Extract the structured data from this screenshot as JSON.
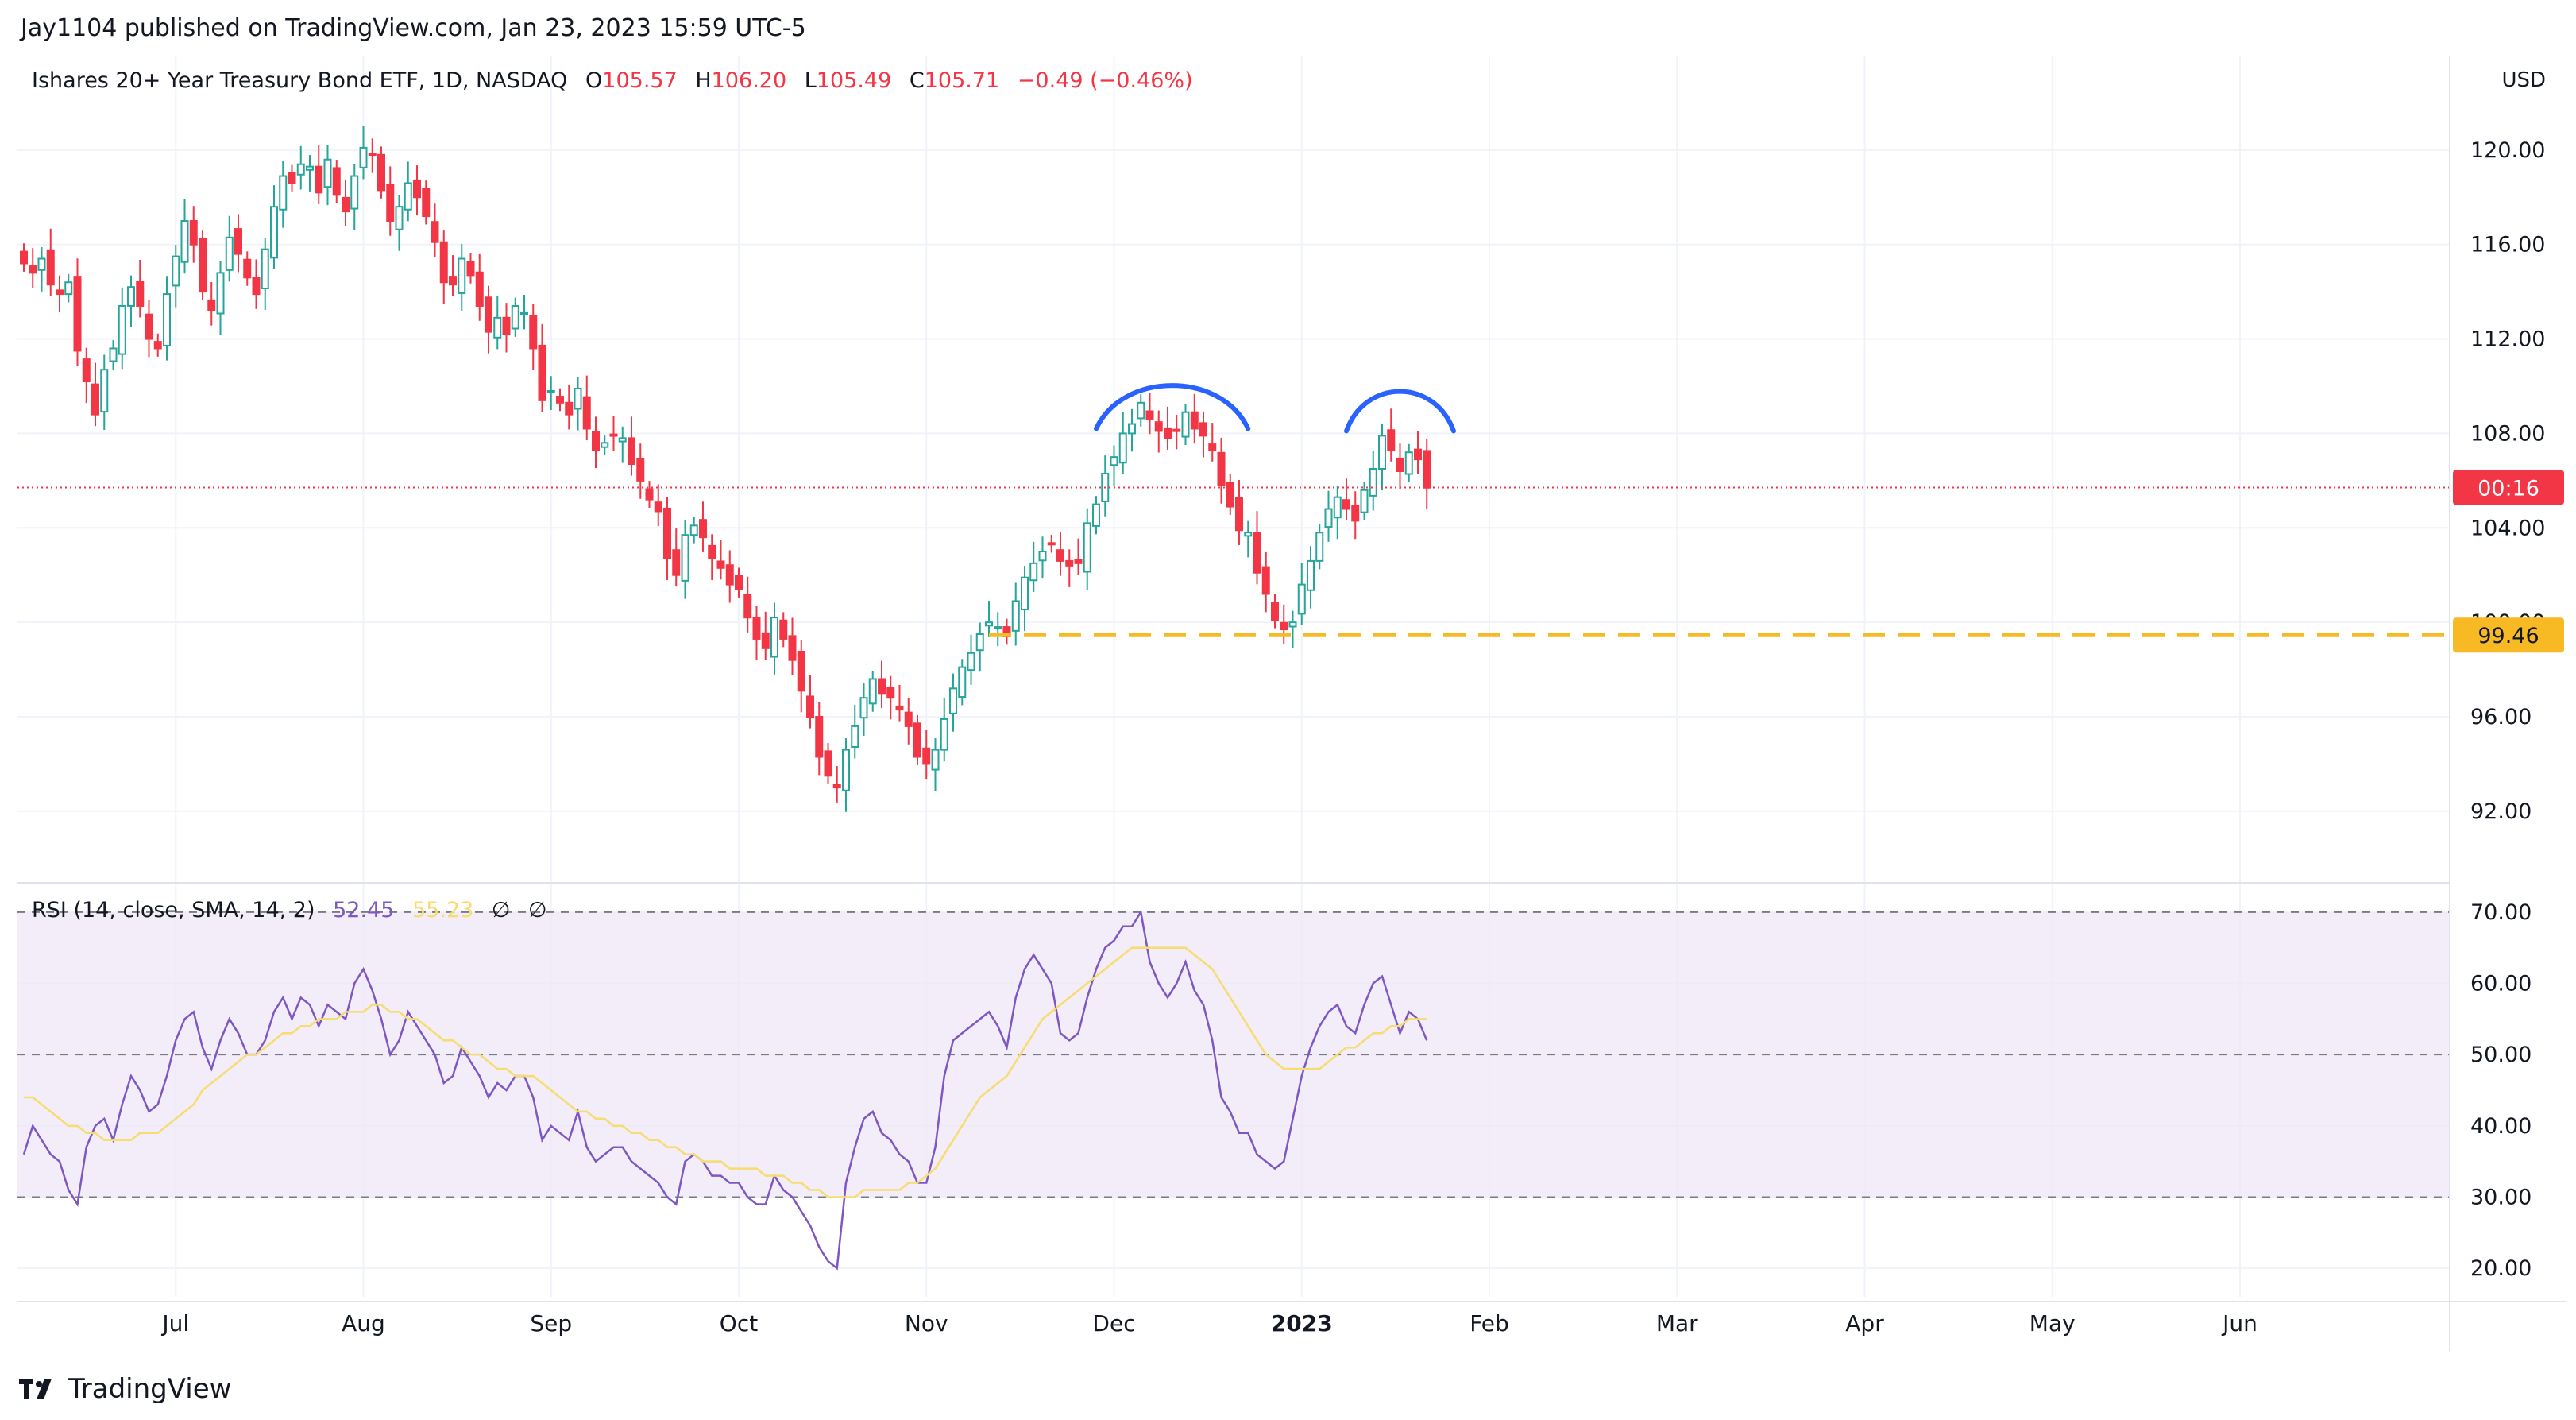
{
  "header": {
    "publisher": "Jay1104 published on TradingView.com, Jan 23, 2023 15:59 UTC-5"
  },
  "legend": {
    "symbol": "Ishares 20+ Year Treasury Bond ETF, 1D, NASDAQ",
    "open_label": "O",
    "open": "105.57",
    "high_label": "H",
    "high": "106.20",
    "low_label": "L",
    "low": "105.49",
    "close_label": "C",
    "close": "105.71",
    "change": "−0.49 (−0.46%)"
  },
  "rsi_legend": {
    "label": "RSI (14, close, SMA, 14, 2)",
    "rsi_value": "52.45",
    "sma_value": "55.23",
    "empty1": "∅",
    "empty2": "∅"
  },
  "currency": "USD",
  "brand": "TradingView",
  "price_badge": {
    "countdown": "00:16",
    "color": "#f23645"
  },
  "support_badge": {
    "label": "99.46",
    "color": "#f7b924"
  },
  "colors": {
    "up": "#26a69a",
    "down": "#f23645",
    "rsi": "#7e57c2",
    "sma": "#f7dc6f",
    "band": "#ede7f6",
    "arc": "#2962ff",
    "support": "#f7b924"
  },
  "chart_data": [
    {
      "type": "candlestick",
      "title": "Ishares 20+ Year Treasury Bond ETF, 1D, NASDAQ",
      "y_ticks": [
        "92.00",
        "96.00",
        "100.00",
        "104.00",
        "108.00",
        "112.00",
        "116.00",
        "120.00"
      ],
      "ylim": [
        89,
        124
      ],
      "x_tick_labels": [
        "Jul",
        "Aug",
        "Sep",
        "Oct",
        "Nov",
        "Dec",
        "2023",
        "Feb",
        "Mar",
        "Apr",
        "May",
        "Jun"
      ],
      "x_tick_index": [
        17,
        38,
        59,
        80,
        101,
        122,
        143,
        164,
        185,
        206,
        227,
        248
      ],
      "last_price": 105.71,
      "support_level": 99.46,
      "grid": true,
      "annotations": [
        "left-shoulder arc over early December highs",
        "right-shoulder arc over mid January highs"
      ],
      "closes": [
        115.2,
        114.8,
        115.4,
        114.3,
        113.9,
        114.4,
        111.5,
        110.2,
        108.8,
        110.7,
        111.6,
        113.4,
        114.2,
        113.4,
        112.0,
        111.6,
        113.9,
        115.5,
        117.0,
        116.0,
        114.0,
        113.2,
        114.8,
        116.3,
        115.6,
        114.6,
        113.9,
        115.8,
        117.6,
        118.9,
        118.6,
        119.4,
        119.3,
        118.2,
        119.6,
        118.1,
        117.4,
        118.9,
        120.1,
        119.8,
        118.3,
        117.0,
        117.6,
        118.6,
        118.0,
        117.2,
        116.1,
        114.4,
        114.3,
        115.4,
        114.7,
        113.4,
        112.3,
        112.9,
        112.2,
        113.4,
        113.1,
        111.6,
        109.4,
        109.8,
        109.3,
        108.8,
        109.9,
        108.2,
        107.3,
        107.6,
        107.9,
        107.8,
        106.7,
        106.0,
        105.2,
        104.7,
        102.7,
        102.0,
        103.7,
        104.1,
        103.6,
        102.7,
        102.3,
        101.6,
        101.4,
        100.2,
        99.3,
        98.9,
        100.2,
        99.3,
        98.4,
        97.1,
        96.0,
        94.3,
        93.5,
        93.0,
        94.6,
        95.6,
        96.8,
        97.6,
        97.0,
        96.8,
        96.3,
        95.6,
        94.3,
        94.0,
        94.6,
        95.9,
        97.2,
        98.1,
        98.7,
        99.5,
        100.0,
        99.8,
        99.4,
        100.9,
        101.9,
        102.5,
        103.0,
        103.3,
        102.6,
        102.4,
        102.5,
        104.2,
        105.0,
        106.3,
        107.0,
        108.0,
        108.4,
        109.3,
        108.6,
        108.1,
        107.8,
        108.1,
        108.9,
        108.2,
        107.9,
        107.3,
        105.8,
        104.9,
        103.9,
        103.8,
        102.1,
        101.2,
        100.1,
        99.7,
        100.0,
        101.6,
        102.6,
        103.8,
        104.8,
        105.3,
        104.8,
        104.3,
        105.6,
        106.5,
        107.9,
        107.3,
        106.4,
        107.2,
        106.9,
        105.7
      ],
      "price_min": 92.0,
      "price_max": 120.4
    },
    {
      "type": "line",
      "title": "RSI (14, close, SMA, 14, 2)",
      "y_ticks": [
        "20.00",
        "30.00",
        "40.00",
        "50.00",
        "60.00",
        "70.00"
      ],
      "ylim": [
        16,
        74
      ],
      "band": [
        30,
        70
      ],
      "midline": 50,
      "series": [
        {
          "name": "RSI",
          "values": [
            36,
            40,
            38,
            36,
            35,
            31,
            29,
            37,
            40,
            41,
            38,
            43,
            47,
            45,
            42,
            43,
            47,
            52,
            55,
            56,
            51,
            48,
            52,
            55,
            53,
            50,
            50,
            52,
            56,
            58,
            55,
            58,
            57,
            54,
            57,
            56,
            55,
            60,
            62,
            59,
            55,
            50,
            52,
            56,
            54,
            52,
            50,
            46,
            47,
            51,
            49,
            47,
            44,
            46,
            45,
            47,
            47,
            44,
            38,
            40,
            39,
            38,
            42,
            37,
            35,
            36,
            37,
            37,
            35,
            34,
            33,
            32,
            30,
            29,
            35,
            36,
            35,
            33,
            33,
            32,
            32,
            30,
            29,
            29,
            33,
            31,
            30,
            28,
            26,
            23,
            21,
            20,
            32,
            37,
            41,
            42,
            39,
            38,
            36,
            35,
            32,
            32,
            37,
            47,
            52,
            53,
            54,
            55,
            56,
            54,
            51,
            58,
            62,
            64,
            62,
            60,
            53,
            52,
            53,
            58,
            62,
            65,
            66,
            68,
            68,
            70,
            63,
            60,
            58,
            60,
            63,
            59,
            57,
            52,
            44,
            42,
            39,
            39,
            36,
            35,
            34,
            35,
            41,
            47,
            51,
            54,
            56,
            57,
            54,
            53,
            57,
            60,
            61,
            57,
            53,
            56,
            55,
            52
          ],
          "color": "#7e57c2"
        },
        {
          "name": "SMA",
          "values": [
            44,
            44,
            43,
            42,
            41,
            40,
            40,
            39,
            39,
            38,
            38,
            38,
            38,
            39,
            39,
            39,
            40,
            41,
            42,
            43,
            45,
            46,
            47,
            48,
            49,
            50,
            50,
            51,
            52,
            53,
            53,
            54,
            54,
            55,
            55,
            55,
            56,
            56,
            56,
            57,
            57,
            56,
            56,
            55,
            55,
            54,
            53,
            52,
            52,
            51,
            50,
            50,
            49,
            48,
            48,
            47,
            47,
            47,
            46,
            45,
            44,
            43,
            42,
            42,
            41,
            41,
            40,
            40,
            39,
            39,
            38,
            38,
            37,
            37,
            36,
            36,
            35,
            35,
            35,
            34,
            34,
            34,
            34,
            33,
            33,
            33,
            32,
            32,
            31,
            31,
            30,
            30,
            30,
            30,
            31,
            31,
            31,
            31,
            31,
            32,
            32,
            33,
            34,
            36,
            38,
            40,
            42,
            44,
            45,
            46,
            47,
            49,
            51,
            53,
            55,
            56,
            57,
            58,
            59,
            60,
            61,
            62,
            63,
            64,
            65,
            65,
            65,
            65,
            65,
            65,
            65,
            64,
            63,
            62,
            60,
            58,
            56,
            54,
            52,
            50,
            49,
            48,
            48,
            48,
            48,
            48,
            49,
            50,
            51,
            51,
            52,
            53,
            53,
            54,
            54,
            55,
            55,
            55
          ],
          "color": "#f7dc6f"
        }
      ]
    }
  ]
}
